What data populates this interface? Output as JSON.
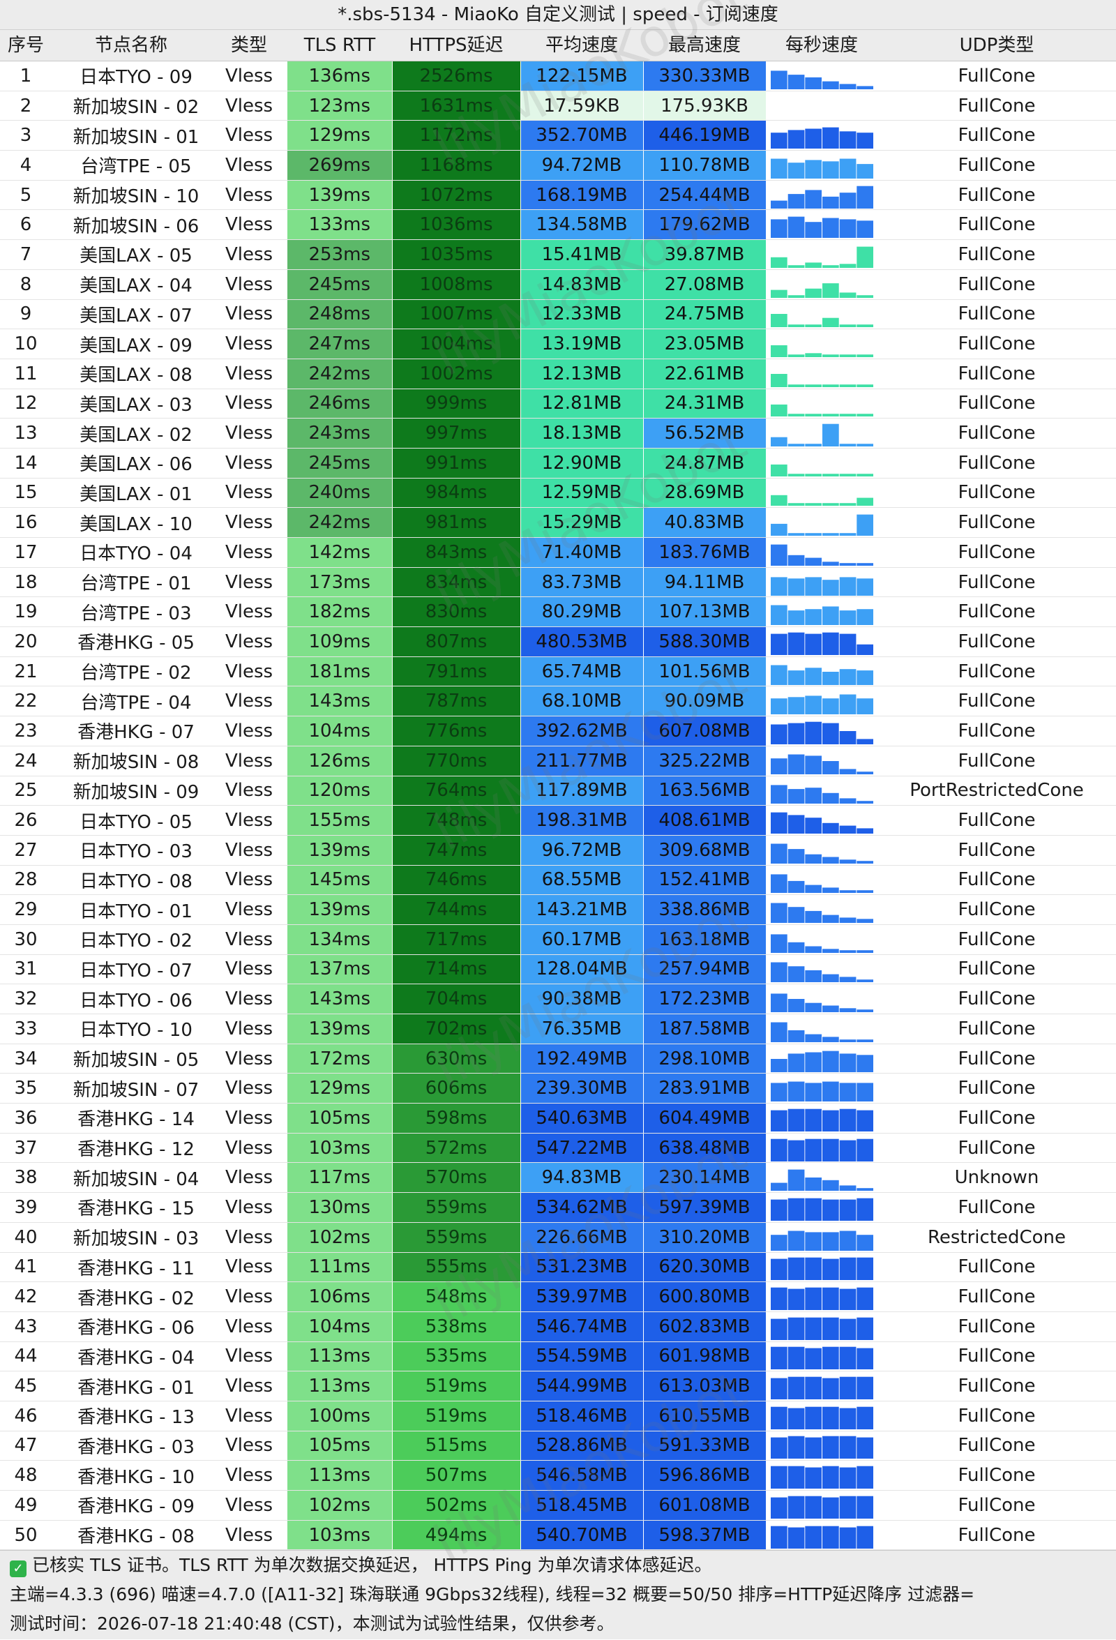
{
  "window": {
    "title": "*.sbs-5134 - MiaoKo 自定义测试 | speed - 订阅速度"
  },
  "columns": [
    "序号",
    "节点名称",
    "类型",
    "TLS RTT",
    "HTTPS延迟",
    "平均速度",
    "最高速度",
    "每秒速度",
    "UDP类型"
  ],
  "watermark": "lilyMiaoKobot",
  "colors": {
    "tls_fast": "#7fe08a",
    "tls_slow": "#5cb869",
    "https_high": "#0e7a1c",
    "https_mid": "#2a9a36",
    "https_low": "#4ccc5a",
    "speed_top": "#1e5fe8",
    "speed_high": "#2d7af0",
    "speed_mid": "#3da0f5",
    "speed_low": "#3fe0a6",
    "speed_tiny": "#e2f7e8"
  },
  "rows": [
    {
      "idx": "1",
      "name": "日本TYO - 09",
      "type": "Vless",
      "tls": "136ms",
      "https": "2526ms",
      "avg": "122.15MB",
      "max": "330.33MB",
      "udp": "FullCone",
      "spark": [
        0.7,
        0.55,
        0.45,
        0.3,
        0.2,
        0.12
      ]
    },
    {
      "idx": "2",
      "name": "新加坡SIN - 02",
      "type": "Vless",
      "tls": "123ms",
      "https": "1631ms",
      "avg": "17.59KB",
      "max": "175.93KB",
      "udp": "FullCone",
      "spark": [
        0,
        0,
        0,
        0,
        0,
        0
      ]
    },
    {
      "idx": "3",
      "name": "新加坡SIN - 01",
      "type": "Vless",
      "tls": "129ms",
      "https": "1172ms",
      "avg": "352.70MB",
      "max": "446.19MB",
      "udp": "FullCone",
      "spark": [
        0.6,
        0.7,
        0.75,
        0.8,
        0.65,
        0.6
      ]
    },
    {
      "idx": "4",
      "name": "台湾TPE - 05",
      "type": "Vless",
      "tls": "269ms",
      "https": "1168ms",
      "avg": "94.72MB",
      "max": "110.78MB",
      "udp": "FullCone",
      "spark": [
        0.75,
        0.6,
        0.7,
        0.65,
        0.75,
        0.55
      ]
    },
    {
      "idx": "5",
      "name": "新加坡SIN - 10",
      "type": "Vless",
      "tls": "139ms",
      "https": "1072ms",
      "avg": "168.19MB",
      "max": "254.44MB",
      "udp": "FullCone",
      "spark": [
        0.3,
        0.55,
        0.7,
        0.45,
        0.6,
        0.85
      ]
    },
    {
      "idx": "6",
      "name": "新加坡SIN - 06",
      "type": "Vless",
      "tls": "133ms",
      "https": "1036ms",
      "avg": "134.58MB",
      "max": "179.62MB",
      "udp": "FullCone",
      "spark": [
        0.7,
        0.8,
        0.6,
        0.75,
        0.7,
        0.65
      ]
    },
    {
      "idx": "7",
      "name": "美国LAX - 05",
      "type": "Vless",
      "tls": "253ms",
      "https": "1035ms",
      "avg": "15.41MB",
      "max": "39.87MB",
      "udp": "FullCone",
      "spark": [
        0.4,
        0.1,
        0.2,
        0.1,
        0.15,
        0.8
      ]
    },
    {
      "idx": "8",
      "name": "美国LAX - 04",
      "type": "Vless",
      "tls": "245ms",
      "https": "1008ms",
      "avg": "14.83MB",
      "max": "27.08MB",
      "udp": "FullCone",
      "spark": [
        0.3,
        0.1,
        0.35,
        0.55,
        0.2,
        0.1
      ]
    },
    {
      "idx": "9",
      "name": "美国LAX - 07",
      "type": "Vless",
      "tls": "248ms",
      "https": "1007ms",
      "avg": "12.33MB",
      "max": "24.75MB",
      "udp": "FullCone",
      "spark": [
        0.5,
        0.1,
        0.1,
        0.35,
        0.1,
        0.1
      ]
    },
    {
      "idx": "10",
      "name": "美国LAX - 09",
      "type": "Vless",
      "tls": "247ms",
      "https": "1004ms",
      "avg": "13.19MB",
      "max": "23.05MB",
      "udp": "FullCone",
      "spark": [
        0.45,
        0.1,
        0.15,
        0.1,
        0.1,
        0.1
      ]
    },
    {
      "idx": "11",
      "name": "美国LAX - 08",
      "type": "Vless",
      "tls": "242ms",
      "https": "1002ms",
      "avg": "12.13MB",
      "max": "22.61MB",
      "udp": "FullCone",
      "spark": [
        0.5,
        0.1,
        0.1,
        0.1,
        0.1,
        0.1
      ]
    },
    {
      "idx": "12",
      "name": "美国LAX - 03",
      "type": "Vless",
      "tls": "246ms",
      "https": "999ms",
      "avg": "12.81MB",
      "max": "24.31MB",
      "udp": "FullCone",
      "spark": [
        0.45,
        0.1,
        0.1,
        0.1,
        0.1,
        0.1
      ]
    },
    {
      "idx": "13",
      "name": "美国LAX - 02",
      "type": "Vless",
      "tls": "243ms",
      "https": "997ms",
      "avg": "18.13MB",
      "max": "56.52MB",
      "udp": "FullCone",
      "spark": [
        0.35,
        0.1,
        0.1,
        0.85,
        0.1,
        0.1
      ]
    },
    {
      "idx": "14",
      "name": "美国LAX - 06",
      "type": "Vless",
      "tls": "245ms",
      "https": "991ms",
      "avg": "12.90MB",
      "max": "24.87MB",
      "udp": "FullCone",
      "spark": [
        0.45,
        0.1,
        0.1,
        0.1,
        0.1,
        0.1
      ]
    },
    {
      "idx": "15",
      "name": "美国LAX - 01",
      "type": "Vless",
      "tls": "240ms",
      "https": "984ms",
      "avg": "12.59MB",
      "max": "28.69MB",
      "udp": "FullCone",
      "spark": [
        0.4,
        0.1,
        0.1,
        0.1,
        0.1,
        0.3
      ]
    },
    {
      "idx": "16",
      "name": "美国LAX - 10",
      "type": "Vless",
      "tls": "242ms",
      "https": "981ms",
      "avg": "15.29MB",
      "max": "40.83MB",
      "udp": "FullCone",
      "spark": [
        0.45,
        0.1,
        0.1,
        0.1,
        0.1,
        0.8
      ]
    },
    {
      "idx": "17",
      "name": "日本TYO - 04",
      "type": "Vless",
      "tls": "142ms",
      "https": "843ms",
      "avg": "71.40MB",
      "max": "183.76MB",
      "udp": "FullCone",
      "spark": [
        0.8,
        0.4,
        0.3,
        0.15,
        0.1,
        0.1
      ]
    },
    {
      "idx": "18",
      "name": "台湾TPE - 01",
      "type": "Vless",
      "tls": "173ms",
      "https": "834ms",
      "avg": "83.73MB",
      "max": "94.11MB",
      "udp": "FullCone",
      "spark": [
        0.7,
        0.65,
        0.7,
        0.6,
        0.7,
        0.65
      ]
    },
    {
      "idx": "19",
      "name": "台湾TPE - 03",
      "type": "Vless",
      "tls": "182ms",
      "https": "830ms",
      "avg": "80.29MB",
      "max": "107.13MB",
      "udp": "FullCone",
      "spark": [
        0.75,
        0.55,
        0.6,
        0.7,
        0.55,
        0.6
      ]
    },
    {
      "idx": "20",
      "name": "香港HKG - 05",
      "type": "Vless",
      "tls": "109ms",
      "https": "807ms",
      "avg": "480.53MB",
      "max": "588.30MB",
      "udp": "FullCone",
      "spark": [
        0.8,
        0.85,
        0.8,
        0.85,
        0.8,
        0.4
      ]
    },
    {
      "idx": "21",
      "name": "台湾TPE - 02",
      "type": "Vless",
      "tls": "181ms",
      "https": "791ms",
      "avg": "65.74MB",
      "max": "101.56MB",
      "udp": "FullCone",
      "spark": [
        0.75,
        0.55,
        0.65,
        0.5,
        0.6,
        0.55
      ]
    },
    {
      "idx": "22",
      "name": "台湾TPE - 04",
      "type": "Vless",
      "tls": "143ms",
      "https": "787ms",
      "avg": "68.10MB",
      "max": "90.09MB",
      "udp": "FullCone",
      "spark": [
        0.6,
        0.65,
        0.7,
        0.6,
        0.75,
        0.6
      ]
    },
    {
      "idx": "23",
      "name": "香港HKG - 07",
      "type": "Vless",
      "tls": "104ms",
      "https": "776ms",
      "avg": "392.62MB",
      "max": "607.08MB",
      "udp": "FullCone",
      "spark": [
        0.75,
        0.8,
        0.85,
        0.8,
        0.5,
        0.2
      ]
    },
    {
      "idx": "24",
      "name": "新加坡SIN - 08",
      "type": "Vless",
      "tls": "126ms",
      "https": "770ms",
      "avg": "211.77MB",
      "max": "325.22MB",
      "udp": "FullCone",
      "spark": [
        0.6,
        0.75,
        0.7,
        0.5,
        0.2,
        0.1
      ]
    },
    {
      "idx": "25",
      "name": "新加坡SIN - 09",
      "type": "Vless",
      "tls": "120ms",
      "https": "764ms",
      "avg": "117.89MB",
      "max": "163.56MB",
      "udp": "PortRestrictedCone",
      "spark": [
        0.7,
        0.55,
        0.6,
        0.4,
        0.2,
        0.1
      ]
    },
    {
      "idx": "26",
      "name": "日本TYO - 05",
      "type": "Vless",
      "tls": "155ms",
      "https": "748ms",
      "avg": "198.31MB",
      "max": "408.61MB",
      "udp": "FullCone",
      "spark": [
        0.8,
        0.7,
        0.6,
        0.4,
        0.3,
        0.2
      ]
    },
    {
      "idx": "27",
      "name": "日本TYO - 03",
      "type": "Vless",
      "tls": "139ms",
      "https": "747ms",
      "avg": "96.72MB",
      "max": "309.68MB",
      "udp": "FullCone",
      "spark": [
        0.75,
        0.55,
        0.35,
        0.25,
        0.15,
        0.1
      ]
    },
    {
      "idx": "28",
      "name": "日本TYO - 08",
      "type": "Vless",
      "tls": "145ms",
      "https": "746ms",
      "avg": "68.55MB",
      "max": "152.41MB",
      "udp": "FullCone",
      "spark": [
        0.7,
        0.45,
        0.3,
        0.2,
        0.1,
        0.1
      ]
    },
    {
      "idx": "29",
      "name": "日本TYO - 01",
      "type": "Vless",
      "tls": "139ms",
      "https": "744ms",
      "avg": "143.21MB",
      "max": "338.86MB",
      "udp": "FullCone",
      "spark": [
        0.75,
        0.6,
        0.45,
        0.3,
        0.2,
        0.15
      ]
    },
    {
      "idx": "30",
      "name": "日本TYO - 02",
      "type": "Vless",
      "tls": "134ms",
      "https": "717ms",
      "avg": "60.17MB",
      "max": "163.18MB",
      "udp": "FullCone",
      "spark": [
        0.7,
        0.4,
        0.25,
        0.15,
        0.1,
        0.1
      ]
    },
    {
      "idx": "31",
      "name": "日本TYO - 07",
      "type": "Vless",
      "tls": "137ms",
      "https": "714ms",
      "avg": "128.04MB",
      "max": "257.94MB",
      "udp": "FullCone",
      "spark": [
        0.75,
        0.6,
        0.45,
        0.3,
        0.2,
        0.1
      ]
    },
    {
      "idx": "32",
      "name": "日本TYO - 06",
      "type": "Vless",
      "tls": "143ms",
      "https": "704ms",
      "avg": "90.38MB",
      "max": "172.23MB",
      "udp": "FullCone",
      "spark": [
        0.7,
        0.5,
        0.35,
        0.25,
        0.15,
        0.1
      ]
    },
    {
      "idx": "33",
      "name": "日本TYO - 10",
      "type": "Vless",
      "tls": "139ms",
      "https": "702ms",
      "avg": "76.35MB",
      "max": "187.58MB",
      "udp": "FullCone",
      "spark": [
        0.75,
        0.45,
        0.3,
        0.2,
        0.1,
        0.1
      ]
    },
    {
      "idx": "34",
      "name": "新加坡SIN - 05",
      "type": "Vless",
      "tls": "172ms",
      "https": "630ms",
      "avg": "192.49MB",
      "max": "298.10MB",
      "udp": "FullCone",
      "spark": [
        0.5,
        0.7,
        0.75,
        0.8,
        0.7,
        0.65
      ]
    },
    {
      "idx": "35",
      "name": "新加坡SIN - 07",
      "type": "Vless",
      "tls": "129ms",
      "https": "606ms",
      "avg": "239.30MB",
      "max": "283.91MB",
      "udp": "FullCone",
      "spark": [
        0.7,
        0.75,
        0.7,
        0.75,
        0.7,
        0.7
      ]
    },
    {
      "idx": "36",
      "name": "香港HKG - 14",
      "type": "Vless",
      "tls": "105ms",
      "https": "598ms",
      "avg": "540.63MB",
      "max": "604.49MB",
      "udp": "FullCone",
      "spark": [
        0.8,
        0.85,
        0.85,
        0.8,
        0.85,
        0.8
      ]
    },
    {
      "idx": "37",
      "name": "香港HKG - 12",
      "type": "Vless",
      "tls": "103ms",
      "https": "572ms",
      "avg": "547.22MB",
      "max": "638.48MB",
      "udp": "FullCone",
      "spark": [
        0.85,
        0.8,
        0.85,
        0.85,
        0.8,
        0.85
      ]
    },
    {
      "idx": "38",
      "name": "新加坡SIN - 04",
      "type": "Vless",
      "tls": "117ms",
      "https": "570ms",
      "avg": "94.83MB",
      "max": "230.14MB",
      "udp": "Unknown",
      "spark": [
        0.3,
        0.8,
        0.5,
        0.4,
        0.2,
        0.1
      ]
    },
    {
      "idx": "39",
      "name": "香港HKG - 15",
      "type": "Vless",
      "tls": "130ms",
      "https": "559ms",
      "avg": "534.62MB",
      "max": "597.39MB",
      "udp": "FullCone",
      "spark": [
        0.8,
        0.85,
        0.85,
        0.8,
        0.8,
        0.85
      ]
    },
    {
      "idx": "40",
      "name": "新加坡SIN - 03",
      "type": "Vless",
      "tls": "102ms",
      "https": "559ms",
      "avg": "226.66MB",
      "max": "310.20MB",
      "udp": "RestrictedCone",
      "spark": [
        0.6,
        0.75,
        0.7,
        0.7,
        0.75,
        0.6
      ]
    },
    {
      "idx": "41",
      "name": "香港HKG - 11",
      "type": "Vless",
      "tls": "111ms",
      "https": "555ms",
      "avg": "531.23MB",
      "max": "620.30MB",
      "udp": "FullCone",
      "spark": [
        0.8,
        0.85,
        0.85,
        0.8,
        0.85,
        0.85
      ]
    },
    {
      "idx": "42",
      "name": "香港HKG - 02",
      "type": "Vless",
      "tls": "106ms",
      "https": "548ms",
      "avg": "539.97MB",
      "max": "600.80MB",
      "udp": "FullCone",
      "spark": [
        0.85,
        0.8,
        0.85,
        0.85,
        0.8,
        0.85
      ]
    },
    {
      "idx": "43",
      "name": "香港HKG - 06",
      "type": "Vless",
      "tls": "104ms",
      "https": "538ms",
      "avg": "546.74MB",
      "max": "602.83MB",
      "udp": "FullCone",
      "spark": [
        0.8,
        0.85,
        0.85,
        0.85,
        0.8,
        0.85
      ]
    },
    {
      "idx": "44",
      "name": "香港HKG - 04",
      "type": "Vless",
      "tls": "113ms",
      "https": "535ms",
      "avg": "554.59MB",
      "max": "601.98MB",
      "udp": "FullCone",
      "spark": [
        0.85,
        0.85,
        0.8,
        0.85,
        0.85,
        0.8
      ]
    },
    {
      "idx": "45",
      "name": "香港HKG - 01",
      "type": "Vless",
      "tls": "113ms",
      "https": "519ms",
      "avg": "544.99MB",
      "max": "613.03MB",
      "udp": "FullCone",
      "spark": [
        0.8,
        0.85,
        0.85,
        0.8,
        0.85,
        0.85
      ]
    },
    {
      "idx": "46",
      "name": "香港HKG - 13",
      "type": "Vless",
      "tls": "100ms",
      "https": "519ms",
      "avg": "518.46MB",
      "max": "610.55MB",
      "udp": "FullCone",
      "spark": [
        0.85,
        0.8,
        0.85,
        0.85,
        0.8,
        0.85
      ]
    },
    {
      "idx": "47",
      "name": "香港HKG - 03",
      "type": "Vless",
      "tls": "105ms",
      "https": "515ms",
      "avg": "528.86MB",
      "max": "591.33MB",
      "udp": "FullCone",
      "spark": [
        0.8,
        0.85,
        0.8,
        0.85,
        0.85,
        0.8
      ]
    },
    {
      "idx": "48",
      "name": "香港HKG - 10",
      "type": "Vless",
      "tls": "113ms",
      "https": "507ms",
      "avg": "546.58MB",
      "max": "596.86MB",
      "udp": "FullCone",
      "spark": [
        0.85,
        0.85,
        0.8,
        0.85,
        0.8,
        0.85
      ]
    },
    {
      "idx": "49",
      "name": "香港HKG - 09",
      "type": "Vless",
      "tls": "102ms",
      "https": "502ms",
      "avg": "518.45MB",
      "max": "601.08MB",
      "udp": "FullCone",
      "spark": [
        0.8,
        0.85,
        0.85,
        0.8,
        0.85,
        0.85
      ]
    },
    {
      "idx": "50",
      "name": "香港HKG - 08",
      "type": "Vless",
      "tls": "103ms",
      "https": "494ms",
      "avg": "540.70MB",
      "max": "598.37MB",
      "udp": "FullCone",
      "spark": [
        0.85,
        0.8,
        0.85,
        0.85,
        0.8,
        0.85
      ]
    }
  ],
  "footer": {
    "line1": "已核实 TLS 证书。TLS RTT 为单次数据交换延迟， HTTPS Ping 为单次请求体感延迟。",
    "line2": "主端=4.3.3 (696) 喵速=4.7.0 ([A11-32] 珠海联通 9Gbps32线程), 线程=32 概要=50/50 排序=HTTP延迟降序 过滤器=",
    "line3": "测试时间：2026-07-18 21:40:48 (CST)，本测试为试验性结果，仅供参考。"
  }
}
